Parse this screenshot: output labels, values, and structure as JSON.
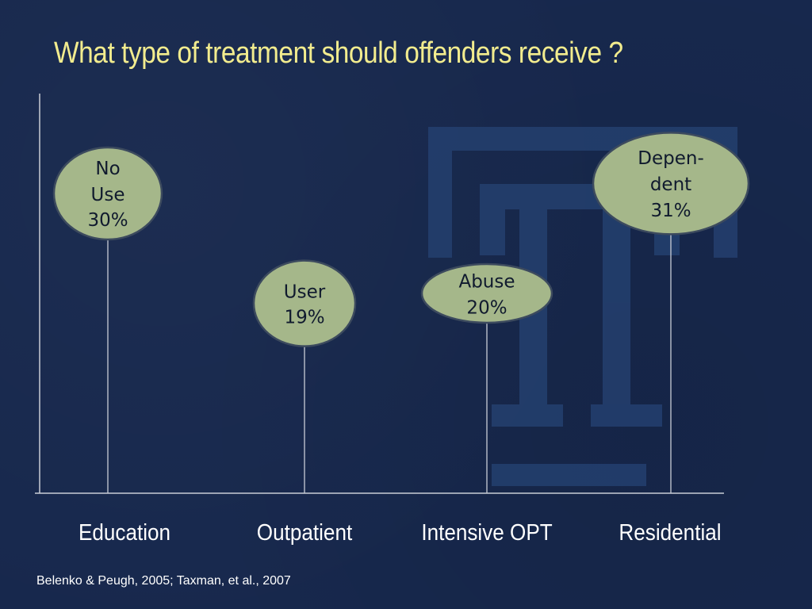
{
  "title": "What type of treatment should offenders receive ?",
  "citation": "Belenko & Peugh, 2005; Taxman, et al., 2007",
  "colors": {
    "background": "#17284d",
    "title": "#f2ec8e",
    "bubble_fill": "#a5b78a",
    "bubble_stroke": "#3c4a5e",
    "axis": "#c9cdd6",
    "logo": "#24406f"
  },
  "chart_data": {
    "type": "lollipop",
    "categories": [
      "Education",
      "Outpatient",
      "Intensive OPT",
      "Residential"
    ],
    "series": [
      {
        "values": [
          30,
          19,
          20,
          31
        ],
        "labels": [
          [
            "No",
            "Use",
            "30%"
          ],
          [
            "User",
            "19%"
          ],
          [
            "Abuse",
            "20%"
          ],
          [
            "Depen-",
            "dent",
            "31%"
          ]
        ]
      }
    ],
    "value_unit": "%",
    "ylim": [
      0,
      40
    ],
    "grid": false,
    "legend": "none"
  }
}
